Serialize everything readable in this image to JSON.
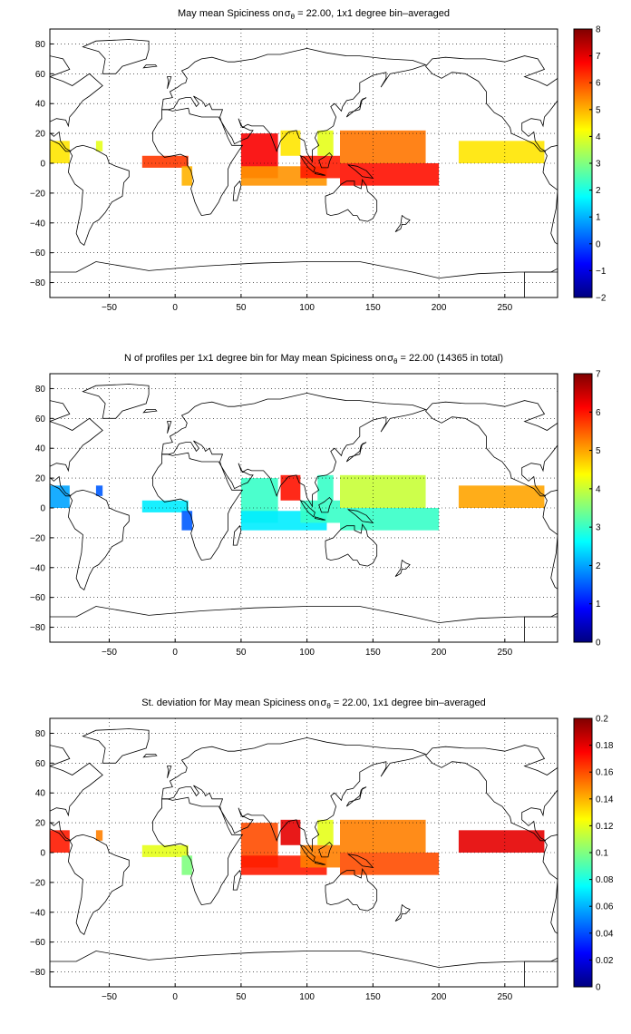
{
  "panels": [
    {
      "title_parts": [
        "May mean Spiciness on",
        "σ",
        "θ",
        " = 22.00, 1x1 degree bin–averaged"
      ],
      "chart_data": {
        "type": "heatmap",
        "title": "May mean Spiciness on σθ = 22.00, 1x1 degree bin–averaged",
        "x_ticks": [
          -50,
          0,
          50,
          100,
          150,
          200,
          250
        ],
        "y_ticks": [
          -80,
          -60,
          -40,
          -20,
          0,
          20,
          40,
          60,
          80
        ],
        "xlim": [
          -95,
          290
        ],
        "ylim": [
          -90,
          90
        ],
        "colorbar": {
          "ticks": [
            -2,
            -1,
            0,
            1,
            2,
            3,
            4,
            5,
            6,
            7,
            8
          ],
          "range": [
            -2,
            8
          ],
          "colormap": "jet"
        },
        "grid": true,
        "regions": [
          {
            "name": "eastern-pacific-west",
            "lon": [
              -95,
              -80
            ],
            "lat": [
              0,
              15
            ],
            "value": 4.5
          },
          {
            "name": "caribbean-patch",
            "lon": [
              -60,
              -55
            ],
            "lat": [
              8,
              15
            ],
            "value": 4.0
          },
          {
            "name": "gulf-of-guinea",
            "lon": [
              -25,
              10
            ],
            "lat": [
              -3,
              5
            ],
            "value": 6.2
          },
          {
            "name": "angola-coast",
            "lon": [
              5,
              13
            ],
            "lat": [
              -15,
              -2
            ],
            "value": 5.0
          },
          {
            "name": "arabian-sea",
            "lon": [
              50,
              78
            ],
            "lat": [
              -10,
              20
            ],
            "value": 6.8
          },
          {
            "name": "bay-of-bengal",
            "lon": [
              80,
              95
            ],
            "lat": [
              5,
              22
            ],
            "value": 4.5
          },
          {
            "name": "southern-indian",
            "lon": [
              50,
              115
            ],
            "lat": [
              -15,
              -2
            ],
            "value": 5.3
          },
          {
            "name": "indonesia-seas",
            "lon": [
              95,
              125
            ],
            "lat": [
              -10,
              5
            ],
            "value": 6.5
          },
          {
            "name": "south-china-sea",
            "lon": [
              108,
              120
            ],
            "lat": [
              5,
              22
            ],
            "value": 4.0
          },
          {
            "name": "western-pacific-north",
            "lon": [
              125,
              190
            ],
            "lat": [
              0,
              22
            ],
            "value": 5.6
          },
          {
            "name": "western-pacific-south",
            "lon": [
              125,
              200
            ],
            "lat": [
              -15,
              0
            ],
            "value": 6.6
          },
          {
            "name": "eastern-pacific",
            "lon": [
              215,
              280
            ],
            "lat": [
              0,
              15
            ],
            "value": 4.5
          }
        ]
      }
    },
    {
      "title_parts": [
        "N of profiles per 1x1 degree bin for May mean Spiciness on",
        "σ",
        "θ",
        " = 22.00 (14365 in total)"
      ],
      "chart_data": {
        "type": "heatmap",
        "title": "N of profiles per 1x1 degree bin for May mean Spiciness on σθ = 22.00 (14365 in total)",
        "x_ticks": [
          -50,
          0,
          50,
          100,
          150,
          200,
          250
        ],
        "y_ticks": [
          -80,
          -60,
          -40,
          -20,
          0,
          20,
          40,
          60,
          80
        ],
        "xlim": [
          -95,
          290
        ],
        "ylim": [
          -90,
          90
        ],
        "colorbar": {
          "ticks": [
            0,
            1,
            2,
            3,
            4,
            5,
            6,
            7
          ],
          "range": [
            0,
            7
          ],
          "colormap": "jet"
        },
        "grid": true,
        "regions": [
          {
            "name": "eastern-pacific-west",
            "lon": [
              -95,
              -80
            ],
            "lat": [
              0,
              15
            ],
            "value": 2.0
          },
          {
            "name": "caribbean-patch",
            "lon": [
              -60,
              -55
            ],
            "lat": [
              8,
              15
            ],
            "value": 1.5
          },
          {
            "name": "gulf-of-guinea",
            "lon": [
              -25,
              10
            ],
            "lat": [
              -3,
              5
            ],
            "value": 2.5
          },
          {
            "name": "angola-coast",
            "lon": [
              5,
              13
            ],
            "lat": [
              -15,
              -2
            ],
            "value": 1.5
          },
          {
            "name": "arabian-sea",
            "lon": [
              50,
              78
            ],
            "lat": [
              -10,
              20
            ],
            "value": 3.0
          },
          {
            "name": "bay-of-bengal",
            "lon": [
              80,
              95
            ],
            "lat": [
              5,
              22
            ],
            "value": 6.0
          },
          {
            "name": "southern-indian",
            "lon": [
              50,
              115
            ],
            "lat": [
              -15,
              -2
            ],
            "value": 2.5
          },
          {
            "name": "indonesia-seas",
            "lon": [
              95,
              125
            ],
            "lat": [
              -10,
              5
            ],
            "value": 3.0
          },
          {
            "name": "south-china-sea",
            "lon": [
              108,
              120
            ],
            "lat": [
              5,
              22
            ],
            "value": 3.0
          },
          {
            "name": "western-pacific-north",
            "lon": [
              125,
              190
            ],
            "lat": [
              0,
              22
            ],
            "value": 4.0
          },
          {
            "name": "western-pacific-south",
            "lon": [
              125,
              200
            ],
            "lat": [
              -15,
              0
            ],
            "value": 3.0
          },
          {
            "name": "eastern-pacific",
            "lon": [
              215,
              280
            ],
            "lat": [
              0,
              15
            ],
            "value": 5.0
          }
        ]
      }
    },
    {
      "title_parts": [
        "St. deviation for May mean Spiciness on",
        "σ",
        "θ",
        " = 22.00, 1x1 degree bin–averaged"
      ],
      "chart_data": {
        "type": "heatmap",
        "title": "St. deviation for May mean Spiciness on σθ = 22.00, 1x1 degree bin–averaged",
        "x_ticks": [
          -50,
          0,
          50,
          100,
          150,
          200,
          250
        ],
        "y_ticks": [
          -80,
          -60,
          -40,
          -20,
          0,
          20,
          40,
          60,
          80
        ],
        "xlim": [
          -95,
          290
        ],
        "ylim": [
          -90,
          90
        ],
        "colorbar": {
          "ticks": [
            0,
            0.02,
            0.04,
            0.06,
            0.08,
            0.1,
            0.12,
            0.14,
            0.16,
            0.18,
            0.2
          ],
          "range": [
            0,
            0.2
          ],
          "colormap": "jet"
        },
        "grid": true,
        "regions": [
          {
            "name": "eastern-pacific-west",
            "lon": [
              -95,
              -80
            ],
            "lat": [
              0,
              15
            ],
            "value": 0.17
          },
          {
            "name": "caribbean-patch",
            "lon": [
              -60,
              -55
            ],
            "lat": [
              8,
              15
            ],
            "value": 0.15
          },
          {
            "name": "gulf-of-guinea",
            "lon": [
              -25,
              10
            ],
            "lat": [
              -3,
              5
            ],
            "value": 0.12
          },
          {
            "name": "angola-coast",
            "lon": [
              5,
              13
            ],
            "lat": [
              -15,
              -2
            ],
            "value": 0.1
          },
          {
            "name": "arabian-sea",
            "lon": [
              50,
              78
            ],
            "lat": [
              -10,
              20
            ],
            "value": 0.16
          },
          {
            "name": "bay-of-bengal",
            "lon": [
              80,
              95
            ],
            "lat": [
              5,
              22
            ],
            "value": 0.18
          },
          {
            "name": "southern-indian",
            "lon": [
              50,
              115
            ],
            "lat": [
              -15,
              -2
            ],
            "value": 0.17
          },
          {
            "name": "indonesia-seas",
            "lon": [
              95,
              125
            ],
            "lat": [
              -10,
              5
            ],
            "value": 0.15
          },
          {
            "name": "south-china-sea",
            "lon": [
              108,
              120
            ],
            "lat": [
              5,
              22
            ],
            "value": 0.12
          },
          {
            "name": "western-pacific-north",
            "lon": [
              125,
              190
            ],
            "lat": [
              0,
              22
            ],
            "value": 0.15
          },
          {
            "name": "western-pacific-south",
            "lon": [
              125,
              200
            ],
            "lat": [
              -15,
              0
            ],
            "value": 0.16
          },
          {
            "name": "eastern-pacific",
            "lon": [
              215,
              280
            ],
            "lat": [
              0,
              15
            ],
            "value": 0.18
          }
        ]
      }
    }
  ]
}
